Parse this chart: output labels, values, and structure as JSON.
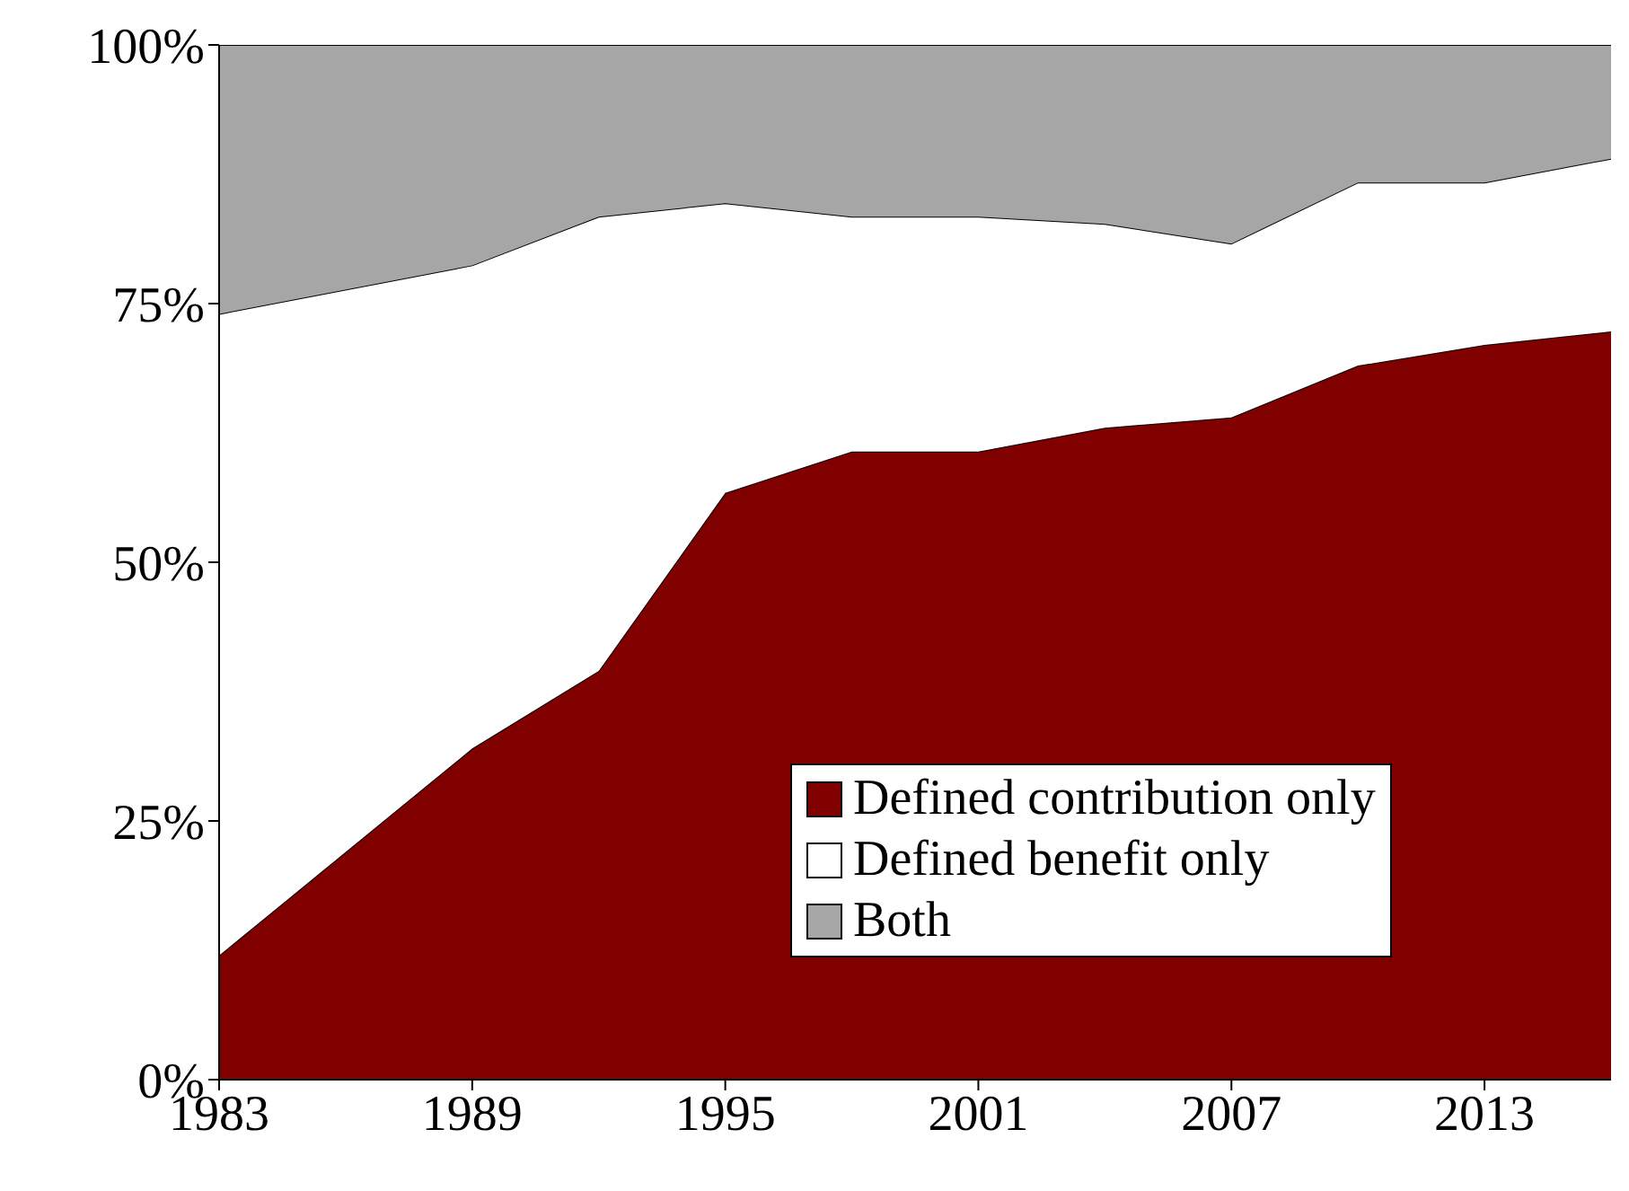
{
  "chart_data": {
    "type": "area",
    "stacked": true,
    "x": [
      1983,
      1989,
      1992,
      1995,
      1998,
      2001,
      2004,
      2007,
      2010,
      2013,
      2016
    ],
    "series": [
      {
        "name": "Defined contribution only",
        "color": "#800000",
        "values": [
          12,
          32,
          39.5,
          56.7,
          60.7,
          60.7,
          63,
          64,
          69,
          71,
          72.3
        ]
      },
      {
        "name": "Defined benefit only",
        "color": "#ffffff",
        "values": [
          62,
          46.7,
          43.9,
          28,
          22.7,
          22.7,
          19.7,
          16.8,
          17.7,
          15.7,
          16.7
        ]
      },
      {
        "name": "Both",
        "color": "#a6a6a6",
        "values": [
          26,
          21.3,
          16.6,
          15.3,
          16.6,
          16.6,
          17.3,
          19.2,
          13.3,
          13.3,
          11
        ]
      }
    ],
    "xlim": [
      1983,
      2016
    ],
    "xticks": [
      1983,
      1989,
      1995,
      2001,
      2007,
      2013
    ],
    "ylim": [
      0,
      100
    ],
    "yticks": [
      {
        "value": 0,
        "label": "0%"
      },
      {
        "value": 25,
        "label": "25%"
      },
      {
        "value": 50,
        "label": "50%"
      },
      {
        "value": 75,
        "label": "75%"
      },
      {
        "value": 100,
        "label": "100%"
      }
    ],
    "grid": false,
    "legend": "bottom right"
  }
}
